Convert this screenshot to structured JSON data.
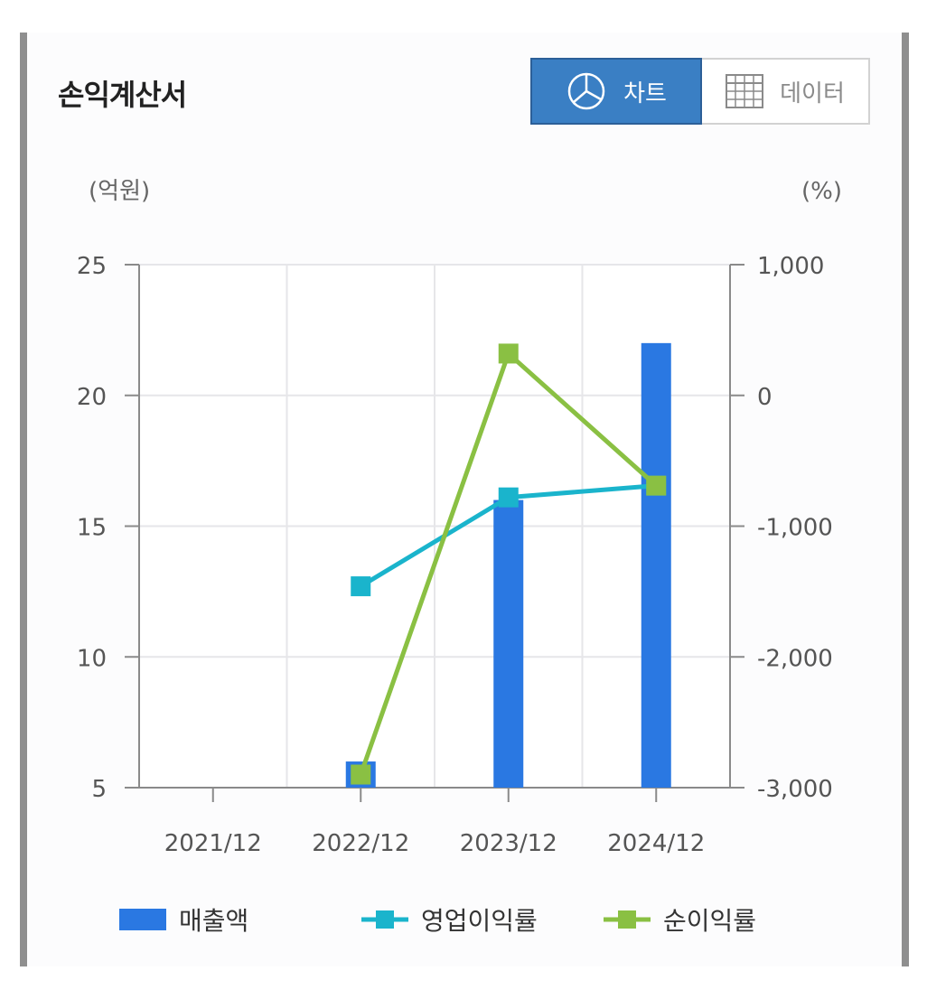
{
  "header": {
    "title": "손익계산서",
    "chart_button_label": "차트",
    "data_button_label": "데이터"
  },
  "colors": {
    "revenue": "#2a78e2",
    "operating_margin": "#1ab4cc",
    "net_margin": "#8ac043",
    "active_button": "#3a7fc4"
  },
  "chart_data": {
    "type": "bar",
    "title": "",
    "categories": [
      "2021/12",
      "2022/12",
      "2023/12",
      "2024/12"
    ],
    "y_left": {
      "unit_label": "(억원)",
      "range": [
        5,
        25
      ],
      "ticks": [
        "25",
        "20",
        "15",
        "10",
        "5"
      ]
    },
    "y_right": {
      "unit_label": "(%)",
      "range": [
        -3000,
        1000
      ],
      "ticks": [
        "1,000",
        "0",
        "-1,000",
        "-2,000",
        "-3,000"
      ]
    },
    "series": [
      {
        "name": "매출액",
        "type": "bar",
        "axis": "left",
        "values": [
          null,
          6,
          16,
          22
        ]
      },
      {
        "name": "영업이익률",
        "type": "line",
        "axis": "right",
        "values": [
          null,
          -1460,
          -780,
          -690
        ]
      },
      {
        "name": "순이익률",
        "type": "line",
        "axis": "right",
        "values": [
          null,
          -2900,
          320,
          -690
        ]
      }
    ],
    "grid": true,
    "legend_position": "bottom"
  }
}
